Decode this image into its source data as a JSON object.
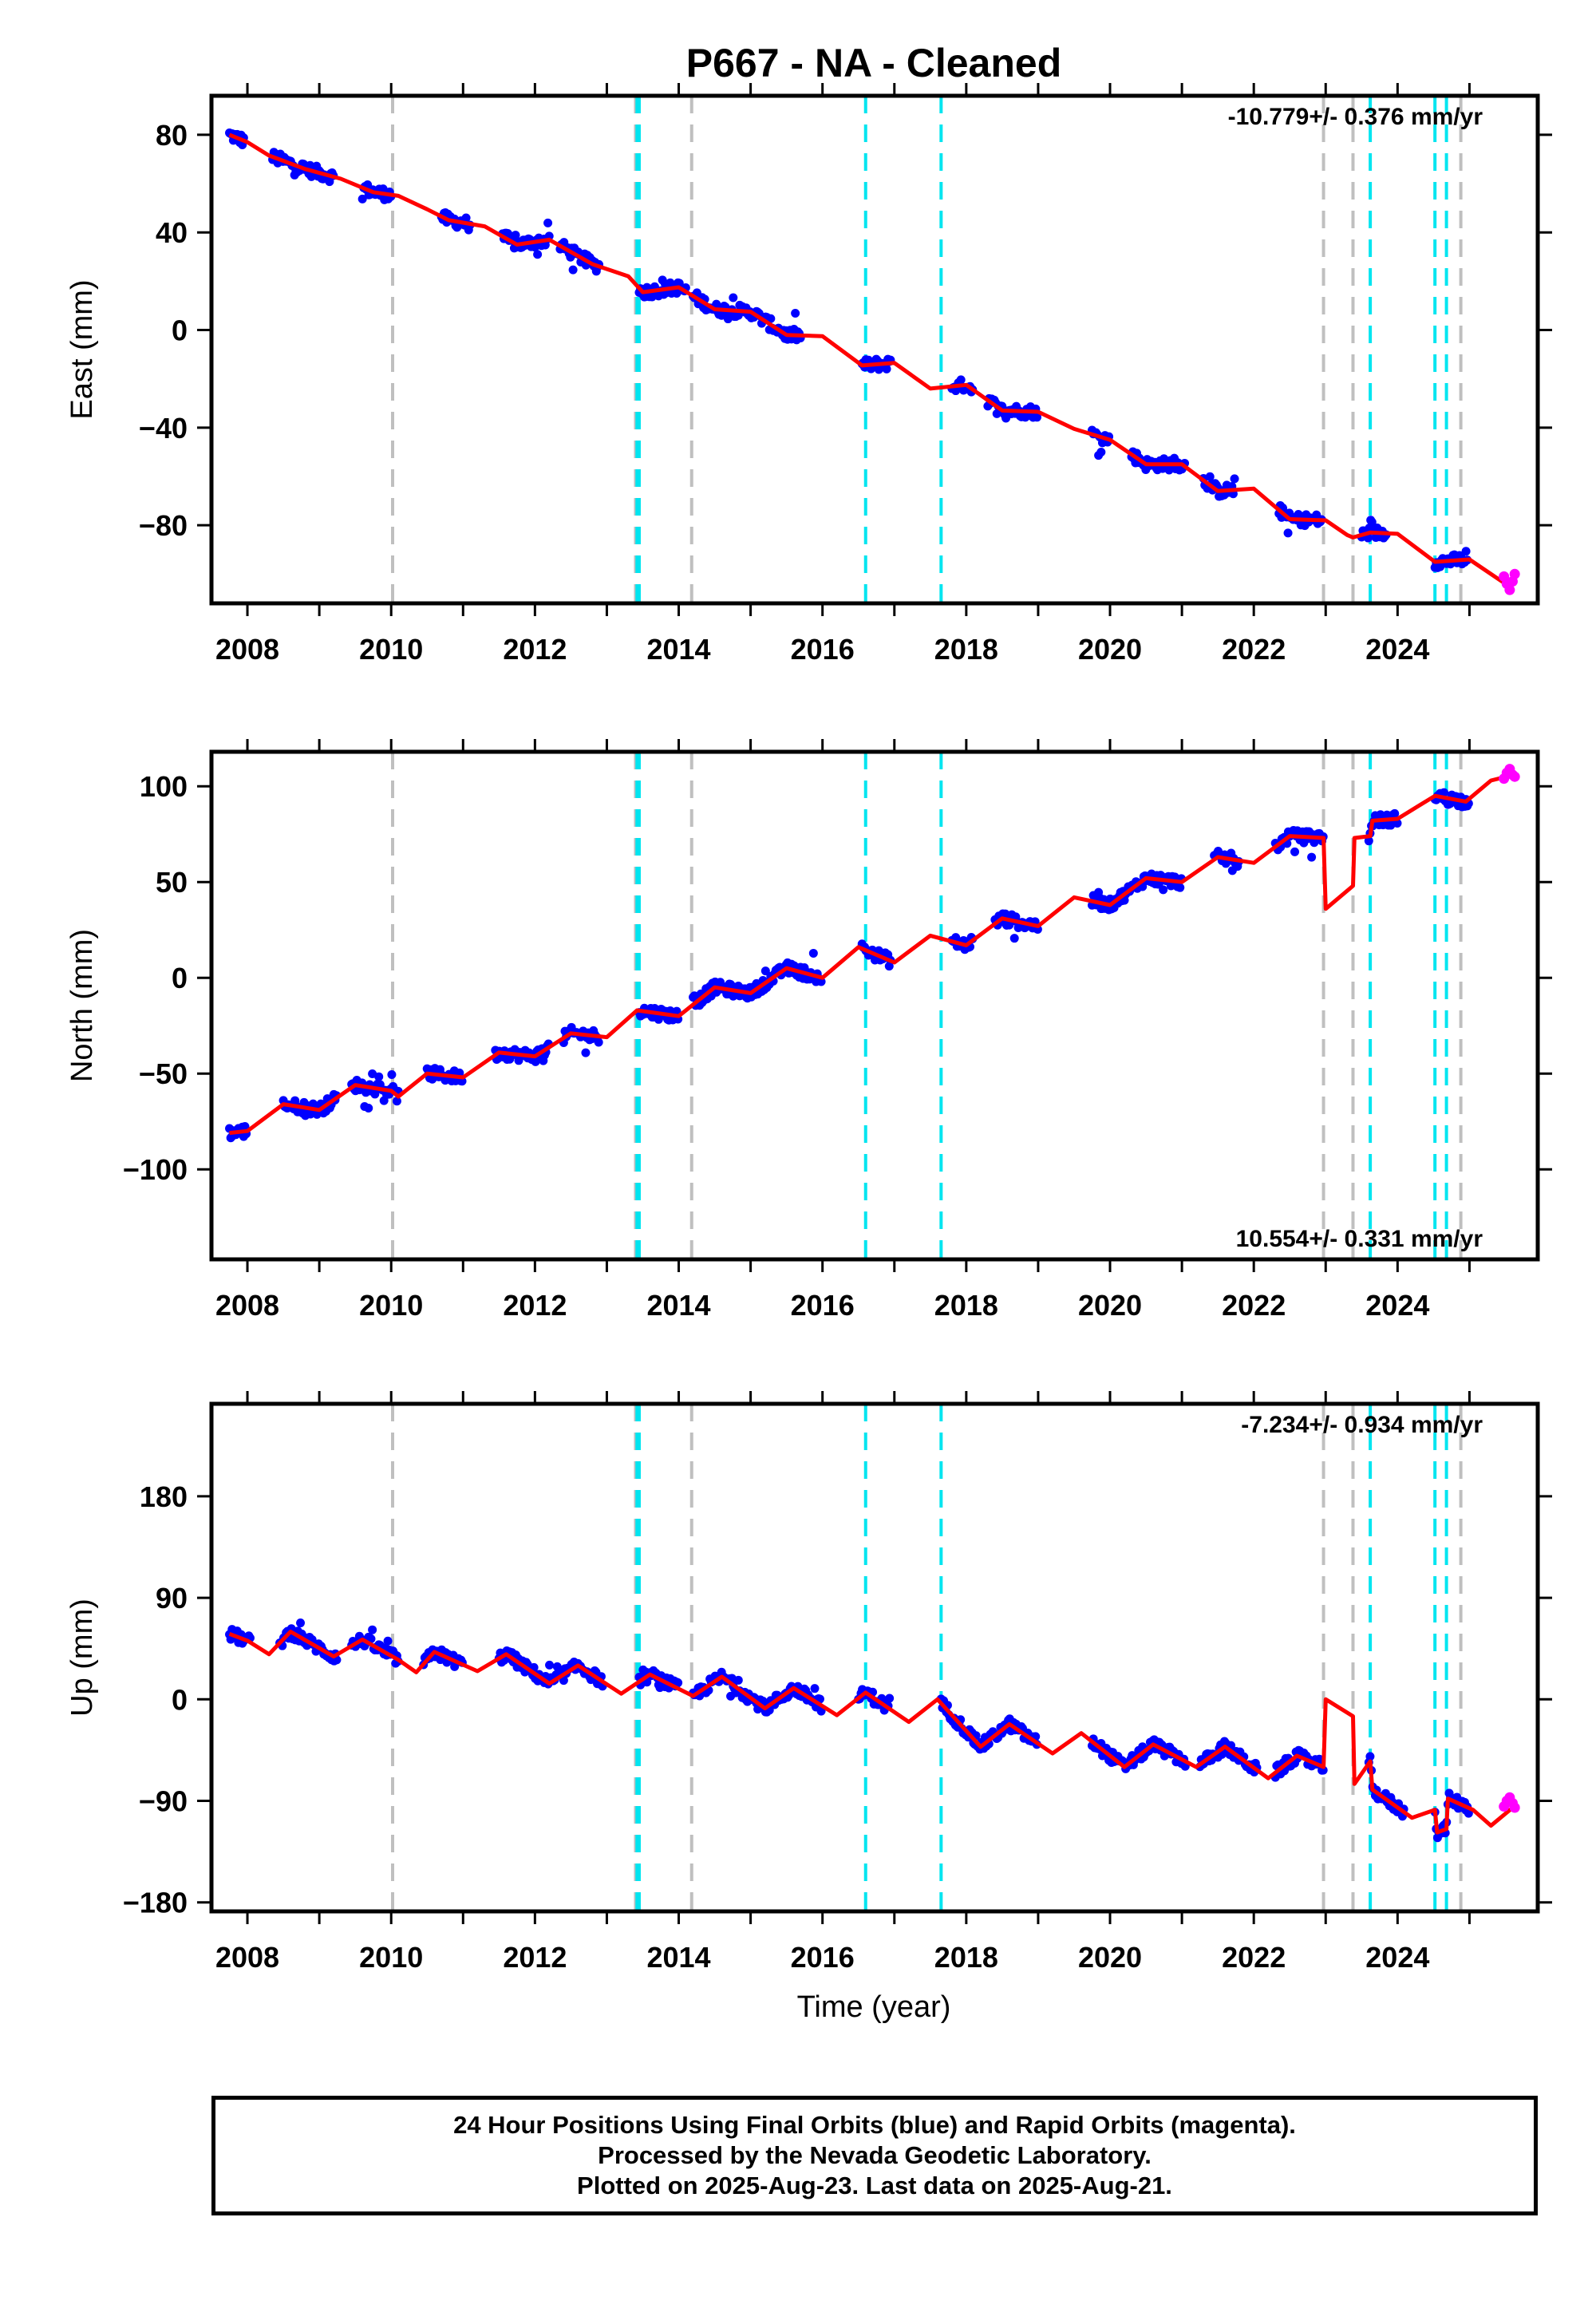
{
  "chart_data": {
    "title": "P667  - NA - Cleaned",
    "type": "scatter",
    "x_label": "Time (year)",
    "x_range": [
      2007.5,
      2025.95
    ],
    "x_ticks": [
      2008,
      2010,
      2012,
      2014,
      2016,
      2018,
      2020,
      2022,
      2024
    ],
    "x_minor_ticks": [
      2008,
      2009,
      2010,
      2011,
      2012,
      2013,
      2014,
      2015,
      2016,
      2017,
      2018,
      2019,
      2020,
      2021,
      2022,
      2023,
      2024,
      2025
    ],
    "event_lines": {
      "cyan": [
        2013.42,
        2013.45,
        2016.6,
        2017.65,
        2023.62,
        2024.52,
        2024.68
      ],
      "gray": [
        2010.02,
        2013.4,
        2014.18,
        2022.97,
        2023.38,
        2024.88
      ]
    },
    "colors": {
      "final_orbits": "#0000ff",
      "rapid_orbits": "#ff00ff",
      "model": "#ff0000",
      "cyan_line": "#00e5f0",
      "gray_line": "#bfbfbf"
    },
    "panels": [
      {
        "ylabel": "East (mm)",
        "ylim": [
          -112,
          96
        ],
        "yticks": [
          -80,
          -40,
          0,
          40,
          80
        ],
        "rate": "-10.779+/- 0.376 mm/yr",
        "rate_position": "top-right",
        "model_line": [
          [
            2007.75,
            80.0
          ],
          [
            2008.0,
            77.0
          ],
          [
            2008.3,
            71.5
          ],
          [
            2008.8,
            66.0
          ],
          [
            2009.3,
            62.0
          ],
          [
            2009.75,
            56.5
          ],
          [
            2010.1,
            55.0
          ],
          [
            2010.5,
            49.5
          ],
          [
            2010.8,
            45.0
          ],
          [
            2011.3,
            42.5
          ],
          [
            2011.75,
            35.0
          ],
          [
            2012.2,
            37.0
          ],
          [
            2012.5,
            32.0
          ],
          [
            2012.8,
            27.0
          ],
          [
            2013.3,
            22.0
          ],
          [
            2013.5,
            15.5
          ],
          [
            2014.0,
            17.5
          ],
          [
            2014.5,
            8.5
          ],
          [
            2015.0,
            7.5
          ],
          [
            2015.5,
            -2.0
          ],
          [
            2016.0,
            -2.5
          ],
          [
            2016.55,
            -14.5
          ],
          [
            2017.0,
            -13.5
          ],
          [
            2017.5,
            -24.0
          ],
          [
            2018.0,
            -22.5
          ],
          [
            2018.5,
            -33.0
          ],
          [
            2019.0,
            -33.5
          ],
          [
            2019.5,
            -40.5
          ],
          [
            2020.0,
            -45.0
          ],
          [
            2020.5,
            -55.0
          ],
          [
            2021.0,
            -55.0
          ],
          [
            2021.5,
            -66.0
          ],
          [
            2022.0,
            -65.0
          ],
          [
            2022.5,
            -77.5
          ],
          [
            2023.0,
            -78.0
          ],
          [
            2023.3,
            -84.0
          ],
          [
            2023.38,
            -85.0
          ],
          [
            2023.62,
            -83.0
          ],
          [
            2024.0,
            -83.5
          ],
          [
            2024.52,
            -95.0
          ],
          [
            2025.0,
            -94.0
          ],
          [
            2025.55,
            -105.0
          ],
          [
            2025.62,
            -104.0
          ]
        ],
        "blue_segments": [
          [
            2007.75,
            2007.95
          ],
          [
            2008.35,
            2009.2
          ],
          [
            2009.6,
            2010.0
          ],
          [
            2010.7,
            2011.1
          ],
          [
            2011.55,
            2012.2
          ],
          [
            2012.35,
            2012.9
          ],
          [
            2013.45,
            2014.1
          ],
          [
            2014.2,
            2015.7
          ],
          [
            2016.55,
            2016.95
          ],
          [
            2017.8,
            2018.1
          ],
          [
            2018.3,
            2019.0
          ],
          [
            2019.75,
            2020.0
          ],
          [
            2020.3,
            2021.05
          ],
          [
            2021.3,
            2021.75
          ],
          [
            2022.35,
            2022.95
          ],
          [
            2023.5,
            2023.85
          ],
          [
            2024.52,
            2024.98
          ]
        ],
        "rapid": [
          [
            2025.48,
            -101.0
          ],
          [
            2025.52,
            -104.0
          ],
          [
            2025.56,
            -106.5
          ],
          [
            2025.6,
            -103.0
          ],
          [
            2025.63,
            -100.0
          ]
        ]
      },
      {
        "ylabel": "North (mm)",
        "ylim": [
          -147,
          118
        ],
        "yticks": [
          -100,
          -50,
          0,
          50,
          100
        ],
        "rate": "10.554+/- 0.331 mm/yr",
        "rate_position": "bottom-right",
        "model_line": [
          [
            2007.75,
            -81.0
          ],
          [
            2008.0,
            -80.0
          ],
          [
            2008.5,
            -66.0
          ],
          [
            2009.0,
            -69.0
          ],
          [
            2009.5,
            -56.0
          ],
          [
            2010.0,
            -59.0
          ],
          [
            2010.1,
            -62.0
          ],
          [
            2010.5,
            -50.0
          ],
          [
            2011.0,
            -52.0
          ],
          [
            2011.5,
            -39.0
          ],
          [
            2012.0,
            -41.0
          ],
          [
            2012.5,
            -29.0
          ],
          [
            2013.0,
            -31.0
          ],
          [
            2013.42,
            -17.0
          ],
          [
            2014.0,
            -20.0
          ],
          [
            2014.5,
            -5.0
          ],
          [
            2015.0,
            -8.0
          ],
          [
            2015.5,
            5.0
          ],
          [
            2016.0,
            0.0
          ],
          [
            2016.5,
            16.0
          ],
          [
            2017.0,
            8.0
          ],
          [
            2017.5,
            22.0
          ],
          [
            2018.0,
            17.0
          ],
          [
            2018.5,
            31.0
          ],
          [
            2019.0,
            27.0
          ],
          [
            2019.5,
            42.0
          ],
          [
            2020.0,
            38.0
          ],
          [
            2020.5,
            52.0
          ],
          [
            2021.0,
            50.0
          ],
          [
            2021.5,
            63.0
          ],
          [
            2022.0,
            60.0
          ],
          [
            2022.5,
            74.0
          ],
          [
            2022.97,
            73.0
          ],
          [
            2023.0,
            36.0
          ],
          [
            2023.38,
            48.0
          ],
          [
            2023.4,
            73.0
          ],
          [
            2023.62,
            74.0
          ],
          [
            2023.65,
            82.0
          ],
          [
            2024.0,
            83.0
          ],
          [
            2024.52,
            95.0
          ],
          [
            2024.95,
            92.0
          ],
          [
            2025.3,
            103.0
          ],
          [
            2025.62,
            106.0
          ]
        ],
        "blue_segments": [
          [
            2007.75,
            2008.0
          ],
          [
            2008.5,
            2009.25
          ],
          [
            2009.45,
            2010.1
          ],
          [
            2010.5,
            2011.0
          ],
          [
            2011.45,
            2012.2
          ],
          [
            2012.4,
            2012.9
          ],
          [
            2013.45,
            2014.0
          ],
          [
            2014.2,
            2016.0
          ],
          [
            2016.55,
            2016.95
          ],
          [
            2017.8,
            2018.1
          ],
          [
            2018.4,
            2019.0
          ],
          [
            2019.75,
            2021.0
          ],
          [
            2021.45,
            2021.8
          ],
          [
            2022.3,
            2022.97
          ],
          [
            2023.6,
            2024.0
          ],
          [
            2024.52,
            2025.0
          ]
        ],
        "rapid": [
          [
            2025.48,
            104.0
          ],
          [
            2025.52,
            107.0
          ],
          [
            2025.56,
            109.0
          ],
          [
            2025.6,
            106.0
          ],
          [
            2025.63,
            105.0
          ]
        ]
      },
      {
        "ylabel": "Up (mm)",
        "ylim": [
          -188,
          262
        ],
        "yticks": [
          -180,
          -90,
          0,
          90,
          180
        ],
        "rate": "-7.234+/- 0.934 mm/yr",
        "rate_position": "top-right",
        "model_line": [
          [
            2007.75,
            58.0
          ],
          [
            2008.0,
            52.0
          ],
          [
            2008.3,
            40.0
          ],
          [
            2008.6,
            60.0
          ],
          [
            2009.2,
            38.0
          ],
          [
            2009.6,
            53.0
          ],
          [
            2010.1,
            35.0
          ],
          [
            2010.35,
            24.0
          ],
          [
            2010.6,
            42.0
          ],
          [
            2011.2,
            25.0
          ],
          [
            2011.6,
            40.0
          ],
          [
            2012.2,
            14.0
          ],
          [
            2012.6,
            30.0
          ],
          [
            2013.2,
            5.0
          ],
          [
            2013.6,
            22.0
          ],
          [
            2014.2,
            3.0
          ],
          [
            2014.6,
            20.0
          ],
          [
            2015.2,
            -8.0
          ],
          [
            2015.6,
            10.0
          ],
          [
            2016.2,
            -14.0
          ],
          [
            2016.6,
            6.0
          ],
          [
            2017.2,
            -20.0
          ],
          [
            2017.6,
            0.0
          ],
          [
            2018.2,
            -42.0
          ],
          [
            2018.6,
            -22.0
          ],
          [
            2019.2,
            -48.0
          ],
          [
            2019.6,
            -30.0
          ],
          [
            2020.2,
            -60.0
          ],
          [
            2020.6,
            -40.0
          ],
          [
            2021.2,
            -60.0
          ],
          [
            2021.6,
            -42.0
          ],
          [
            2022.2,
            -70.0
          ],
          [
            2022.6,
            -50.0
          ],
          [
            2022.97,
            -60.0
          ],
          [
            2023.0,
            0.0
          ],
          [
            2023.38,
            -15.0
          ],
          [
            2023.4,
            -75.0
          ],
          [
            2023.62,
            -55.0
          ],
          [
            2023.65,
            -80.0
          ],
          [
            2024.2,
            -105.0
          ],
          [
            2024.52,
            -98.0
          ],
          [
            2024.55,
            -118.0
          ],
          [
            2024.68,
            -115.0
          ],
          [
            2024.7,
            -88.0
          ],
          [
            2025.05,
            -98.0
          ],
          [
            2025.3,
            -112.0
          ],
          [
            2025.62,
            -95.0
          ]
        ],
        "blue_segments": [
          [
            2007.75,
            2008.05
          ],
          [
            2008.45,
            2009.25
          ],
          [
            2009.45,
            2010.1
          ],
          [
            2010.45,
            2011.0
          ],
          [
            2011.5,
            2012.95
          ],
          [
            2013.45,
            2014.0
          ],
          [
            2014.2,
            2016.0
          ],
          [
            2016.5,
            2016.95
          ],
          [
            2017.65,
            2019.0
          ],
          [
            2019.75,
            2021.05
          ],
          [
            2021.25,
            2022.05
          ],
          [
            2022.3,
            2022.97
          ],
          [
            2023.6,
            2024.1
          ],
          [
            2024.52,
            2025.0
          ]
        ],
        "rapid": [
          [
            2025.48,
            -95.0
          ],
          [
            2025.52,
            -90.0
          ],
          [
            2025.56,
            -87.0
          ],
          [
            2025.6,
            -92.0
          ],
          [
            2025.63,
            -96.0
          ]
        ]
      }
    ]
  },
  "footer": {
    "line1": "24 Hour Positions Using Final Orbits (blue) and Rapid Orbits (magenta).",
    "line2": "Processed by the Nevada Geodetic Laboratory.",
    "line3": "Plotted on 2025-Aug-23. Last data on 2025-Aug-21."
  }
}
